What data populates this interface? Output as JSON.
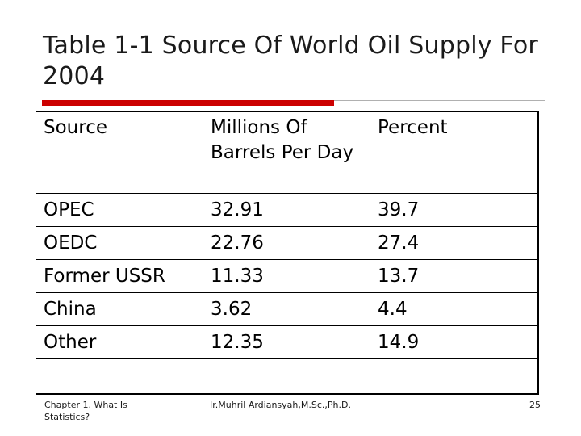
{
  "slide": {
    "title": "Table 1-1 Source Of World Oil Supply For 2004",
    "accent_color": "#cc0000"
  },
  "table": {
    "headers": [
      "Source",
      "Millions Of Barrels Per Day",
      "Percent"
    ],
    "rows": [
      [
        "OPEC",
        "32.91",
        "39.7"
      ],
      [
        "OEDC",
        "22.76",
        "27.4"
      ],
      [
        "Former USSR",
        "11.33",
        "13.7"
      ],
      [
        "China",
        "3.62",
        "4.4"
      ],
      [
        "Other",
        "12.35",
        "14.9"
      ],
      [
        "",
        "",
        ""
      ]
    ]
  },
  "footer": {
    "left": "Chapter 1. What Is Statistics?",
    "center": "Ir.Muhril Ardiansyah,M.Sc.,Ph.D.",
    "page_number": "25"
  }
}
